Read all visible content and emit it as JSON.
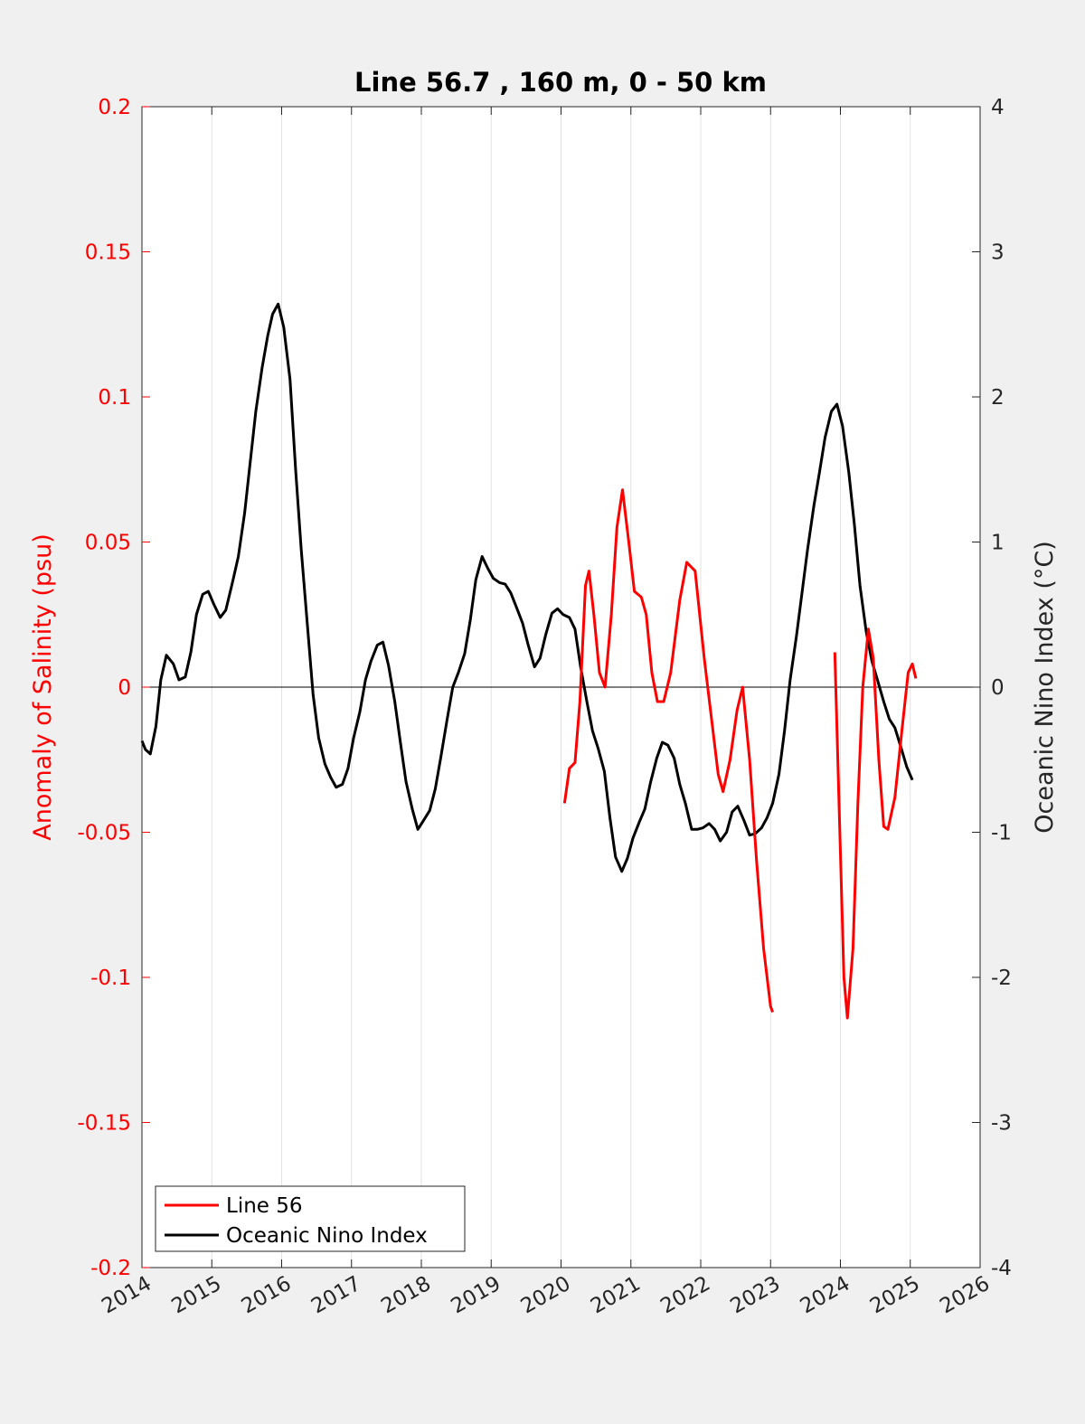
{
  "chart_data": {
    "type": "line",
    "title": "Line 56.7 , 160 m, 0 - 50 km",
    "xlabel": "",
    "ylabel_left": "Anomaly of Salinity (psu)",
    "ylabel_right": "Oceanic Nino Index (°C)",
    "xlim": [
      2014,
      2026
    ],
    "ylim_left": [
      -0.2,
      0.2
    ],
    "ylim_right": [
      -4,
      4
    ],
    "x_ticks": [
      "2014",
      "2015",
      "2016",
      "2017",
      "2018",
      "2019",
      "2020",
      "2021",
      "2022",
      "2023",
      "2024",
      "2025",
      "2026"
    ],
    "y_ticks_left": [
      "0.2",
      "0.15",
      "0.1",
      "0.05",
      "0",
      "-0.05",
      "-0.1",
      "-0.15",
      "-0.2"
    ],
    "y_ticks_right": [
      "4",
      "3",
      "2",
      "1",
      "0",
      "-1",
      "-2",
      "-3",
      "-4"
    ],
    "grid": "vertical",
    "zero_line": true,
    "legend": {
      "placement": "bottom-left"
    },
    "colors": {
      "salinity": "#ff0000",
      "oni": "#000000"
    },
    "series": [
      {
        "name": "Line 56",
        "axis": "left",
        "color": "#ff0000",
        "segments": [
          [
            [
              2020.05,
              -0.04
            ],
            [
              2020.12,
              -0.028
            ],
            [
              2020.2,
              -0.026
            ],
            [
              2020.27,
              -0.005
            ],
            [
              2020.35,
              0.035
            ],
            [
              2020.4,
              0.04
            ],
            [
              2020.47,
              0.025
            ],
            [
              2020.55,
              0.005
            ],
            [
              2020.63,
              0.0
            ],
            [
              2020.72,
              0.025
            ],
            [
              2020.8,
              0.055
            ],
            [
              2020.88,
              0.068
            ],
            [
              2020.97,
              0.05
            ],
            [
              2021.05,
              0.033
            ],
            [
              2021.15,
              0.031
            ],
            [
              2021.22,
              0.025
            ],
            [
              2021.3,
              0.005
            ],
            [
              2021.38,
              -0.005
            ],
            [
              2021.47,
              -0.005
            ],
            [
              2021.57,
              0.005
            ],
            [
              2021.7,
              0.03
            ],
            [
              2021.8,
              0.043
            ],
            [
              2021.92,
              0.04
            ],
            [
              2022.05,
              0.01
            ],
            [
              2022.15,
              -0.01
            ],
            [
              2022.25,
              -0.03
            ],
            [
              2022.32,
              -0.036
            ],
            [
              2022.42,
              -0.025
            ],
            [
              2022.52,
              -0.008
            ],
            [
              2022.6,
              0.0
            ],
            [
              2022.7,
              -0.025
            ],
            [
              2022.8,
              -0.06
            ],
            [
              2022.9,
              -0.09
            ],
            [
              2023.0,
              -0.11
            ],
            [
              2023.03,
              -0.112
            ]
          ],
          [
            [
              2023.92,
              0.012
            ],
            [
              2023.98,
              -0.04
            ],
            [
              2024.05,
              -0.1
            ],
            [
              2024.1,
              -0.114
            ],
            [
              2024.18,
              -0.09
            ],
            [
              2024.25,
              -0.04
            ],
            [
              2024.32,
              0.0
            ],
            [
              2024.4,
              0.02
            ],
            [
              2024.47,
              0.01
            ],
            [
              2024.55,
              -0.025
            ],
            [
              2024.62,
              -0.048
            ],
            [
              2024.68,
              -0.049
            ],
            [
              2024.78,
              -0.038
            ],
            [
              2024.88,
              -0.015
            ],
            [
              2024.97,
              0.005
            ],
            [
              2025.03,
              0.008
            ],
            [
              2025.08,
              0.003
            ]
          ]
        ]
      },
      {
        "name": "Oceanic Nino Index",
        "axis": "right",
        "color": "#000000",
        "points": [
          [
            2014.0,
            -0.37
          ],
          [
            2014.05,
            -0.43
          ],
          [
            2014.12,
            -0.46
          ],
          [
            2014.2,
            -0.27
          ],
          [
            2014.27,
            0.05
          ],
          [
            2014.35,
            0.22
          ],
          [
            2014.45,
            0.16
          ],
          [
            2014.53,
            0.05
          ],
          [
            2014.62,
            0.07
          ],
          [
            2014.7,
            0.24
          ],
          [
            2014.78,
            0.5
          ],
          [
            2014.87,
            0.64
          ],
          [
            2014.95,
            0.66
          ],
          [
            2015.03,
            0.57
          ],
          [
            2015.12,
            0.48
          ],
          [
            2015.2,
            0.53
          ],
          [
            2015.3,
            0.73
          ],
          [
            2015.38,
            0.9
          ],
          [
            2015.47,
            1.2
          ],
          [
            2015.55,
            1.55
          ],
          [
            2015.63,
            1.9
          ],
          [
            2015.72,
            2.2
          ],
          [
            2015.8,
            2.42
          ],
          [
            2015.87,
            2.57
          ],
          [
            2015.95,
            2.64
          ],
          [
            2016.03,
            2.48
          ],
          [
            2016.12,
            2.12
          ],
          [
            2016.2,
            1.5
          ],
          [
            2016.28,
            0.95
          ],
          [
            2016.37,
            0.42
          ],
          [
            2016.45,
            -0.05
          ],
          [
            2016.53,
            -0.35
          ],
          [
            2016.62,
            -0.53
          ],
          [
            2016.7,
            -0.62
          ],
          [
            2016.78,
            -0.69
          ],
          [
            2016.87,
            -0.67
          ],
          [
            2016.95,
            -0.56
          ],
          [
            2017.03,
            -0.35
          ],
          [
            2017.12,
            -0.17
          ],
          [
            2017.2,
            0.05
          ],
          [
            2017.28,
            0.18
          ],
          [
            2017.37,
            0.29
          ],
          [
            2017.45,
            0.31
          ],
          [
            2017.53,
            0.15
          ],
          [
            2017.62,
            -0.1
          ],
          [
            2017.7,
            -0.38
          ],
          [
            2017.78,
            -0.65
          ],
          [
            2017.87,
            -0.84
          ],
          [
            2017.95,
            -0.98
          ],
          [
            2018.03,
            -0.92
          ],
          [
            2018.12,
            -0.85
          ],
          [
            2018.2,
            -0.7
          ],
          [
            2018.28,
            -0.48
          ],
          [
            2018.37,
            -0.22
          ],
          [
            2018.45,
            0.0
          ],
          [
            2018.53,
            0.1
          ],
          [
            2018.62,
            0.23
          ],
          [
            2018.7,
            0.46
          ],
          [
            2018.78,
            0.74
          ],
          [
            2018.87,
            0.9
          ],
          [
            2018.95,
            0.82
          ],
          [
            2019.03,
            0.75
          ],
          [
            2019.12,
            0.72
          ],
          [
            2019.2,
            0.71
          ],
          [
            2019.28,
            0.65
          ],
          [
            2019.37,
            0.54
          ],
          [
            2019.45,
            0.44
          ],
          [
            2019.53,
            0.29
          ],
          [
            2019.62,
            0.14
          ],
          [
            2019.7,
            0.2
          ],
          [
            2019.78,
            0.36
          ],
          [
            2019.87,
            0.51
          ],
          [
            2019.95,
            0.54
          ],
          [
            2020.03,
            0.5
          ],
          [
            2020.12,
            0.48
          ],
          [
            2020.2,
            0.4
          ],
          [
            2020.28,
            0.14
          ],
          [
            2020.37,
            -0.1
          ],
          [
            2020.45,
            -0.3
          ],
          [
            2020.53,
            -0.42
          ],
          [
            2020.62,
            -0.58
          ],
          [
            2020.7,
            -0.9
          ],
          [
            2020.78,
            -1.17
          ],
          [
            2020.87,
            -1.27
          ],
          [
            2020.95,
            -1.18
          ],
          [
            2021.03,
            -1.04
          ],
          [
            2021.12,
            -0.93
          ],
          [
            2021.2,
            -0.84
          ],
          [
            2021.28,
            -0.66
          ],
          [
            2021.37,
            -0.49
          ],
          [
            2021.45,
            -0.38
          ],
          [
            2021.53,
            -0.4
          ],
          [
            2021.62,
            -0.49
          ],
          [
            2021.7,
            -0.67
          ],
          [
            2021.78,
            -0.8
          ],
          [
            2021.87,
            -0.98
          ],
          [
            2021.95,
            -0.98
          ],
          [
            2022.03,
            -0.97
          ],
          [
            2022.12,
            -0.94
          ],
          [
            2022.2,
            -0.98
          ],
          [
            2022.28,
            -1.06
          ],
          [
            2022.37,
            -1.0
          ],
          [
            2022.45,
            -0.86
          ],
          [
            2022.53,
            -0.82
          ],
          [
            2022.62,
            -0.92
          ],
          [
            2022.7,
            -1.02
          ],
          [
            2022.78,
            -1.01
          ],
          [
            2022.87,
            -0.97
          ],
          [
            2022.95,
            -0.9
          ],
          [
            2023.03,
            -0.8
          ],
          [
            2023.12,
            -0.6
          ],
          [
            2023.2,
            -0.3
          ],
          [
            2023.28,
            0.05
          ],
          [
            2023.37,
            0.35
          ],
          [
            2023.45,
            0.65
          ],
          [
            2023.53,
            0.95
          ],
          [
            2023.62,
            1.25
          ],
          [
            2023.7,
            1.48
          ],
          [
            2023.78,
            1.72
          ],
          [
            2023.87,
            1.9
          ],
          [
            2023.95,
            1.95
          ],
          [
            2024.03,
            1.8
          ],
          [
            2024.12,
            1.48
          ],
          [
            2024.2,
            1.12
          ],
          [
            2024.28,
            0.7
          ],
          [
            2024.37,
            0.38
          ],
          [
            2024.45,
            0.18
          ],
          [
            2024.53,
            0.05
          ],
          [
            2024.62,
            -0.1
          ],
          [
            2024.7,
            -0.22
          ],
          [
            2024.78,
            -0.28
          ],
          [
            2024.87,
            -0.42
          ],
          [
            2024.95,
            -0.55
          ],
          [
            2025.03,
            -0.64
          ]
        ]
      }
    ]
  }
}
